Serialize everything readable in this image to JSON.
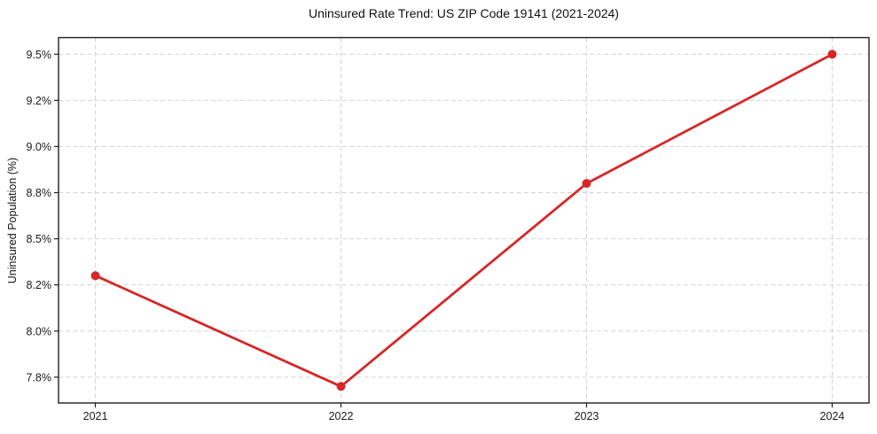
{
  "chart_data": {
    "type": "line",
    "title": "Uninsured Rate Trend: US ZIP Code 19141 (2021-2024)",
    "xlabel": "",
    "ylabel": "Uninsured Population (%)",
    "x": [
      2021,
      2022,
      2023,
      2024
    ],
    "values": [
      8.3,
      7.7,
      8.8,
      9.5
    ],
    "xticks": [
      {
        "value": 2021,
        "label": "2021"
      },
      {
        "value": 2022,
        "label": "2022"
      },
      {
        "value": 2023,
        "label": "2023"
      },
      {
        "value": 2024,
        "label": "2024"
      }
    ],
    "yticks": [
      {
        "value": 7.75,
        "label": "7.8%"
      },
      {
        "value": 8.0,
        "label": "8.0%"
      },
      {
        "value": 8.25,
        "label": "8.2%"
      },
      {
        "value": 8.5,
        "label": "8.5%"
      },
      {
        "value": 8.75,
        "label": "8.8%"
      },
      {
        "value": 9.0,
        "label": "9.0%"
      },
      {
        "value": 9.25,
        "label": "9.2%"
      },
      {
        "value": 9.5,
        "label": "9.5%"
      }
    ],
    "xlim": [
      2020.85,
      2024.15
    ],
    "ylim": [
      7.61,
      9.59
    ],
    "grid": true,
    "grid_style": "dashed",
    "legend": "none",
    "marker": "circle",
    "colors": {
      "line": "#d62728",
      "marker": "#d62728",
      "grid": "#d2d2d2",
      "axis": "#1f1f1f",
      "text": "#1a1a1a",
      "background": "#ffffff"
    }
  }
}
